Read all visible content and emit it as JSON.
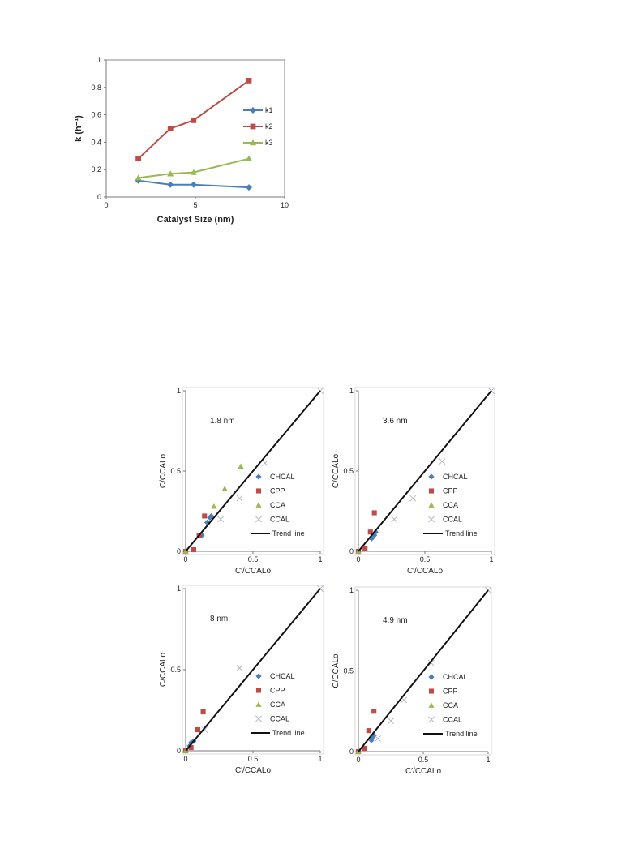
{
  "chart_data": [
    {
      "type": "line",
      "xlabel": "Catalyst  Size (nm)",
      "ylabel": "k  (h⁻¹)",
      "xlim": [
        0,
        10
      ],
      "ylim": [
        0,
        1
      ],
      "xticks": [
        "0",
        "5",
        "10"
      ],
      "yticks": [
        "0",
        "0.2",
        "0.4",
        "0.6",
        "0.8",
        "1"
      ],
      "legend": "right",
      "series": [
        {
          "name": "k1",
          "color": "#4a7ebb",
          "marker": "diamond",
          "x": [
            1.8,
            3.6,
            4.9,
            8.0
          ],
          "y": [
            0.12,
            0.09,
            0.09,
            0.07
          ]
        },
        {
          "name": "k2",
          "color": "#be4b48",
          "marker": "square",
          "x": [
            1.8,
            3.6,
            4.9,
            8.0
          ],
          "y": [
            0.28,
            0.5,
            0.56,
            0.85
          ]
        },
        {
          "name": "k3",
          "color": "#98b954",
          "marker": "triangle",
          "x": [
            1.8,
            3.6,
            4.9,
            8.0
          ],
          "y": [
            0.14,
            0.17,
            0.18,
            0.28
          ]
        }
      ]
    },
    {
      "type": "scatter",
      "annotation": "1.8 nm",
      "xlabel": "C′/CCALo",
      "ylabel": "C/CCALo",
      "xlim": [
        0,
        1
      ],
      "ylim": [
        0,
        1
      ],
      "xticks": [
        "0",
        "0.5",
        "1"
      ],
      "yticks": [
        "0",
        "0.5",
        "1"
      ],
      "series": [
        {
          "name": "CHCAL",
          "color": "#4a7ebb",
          "marker": "diamond",
          "x": [
            0.0,
            0.12,
            0.16,
            0.18,
            0.19
          ],
          "y": [
            0.0,
            0.1,
            0.18,
            0.21,
            0.22
          ]
        },
        {
          "name": "CPP",
          "color": "#be4b48",
          "marker": "square",
          "x": [
            0.0,
            0.06,
            0.1,
            0.14
          ],
          "y": [
            0.0,
            0.01,
            0.1,
            0.22
          ]
        },
        {
          "name": "CCA",
          "color": "#98b954",
          "marker": "triangle",
          "x": [
            0.0,
            0.21,
            0.29,
            0.41
          ],
          "y": [
            0.0,
            0.28,
            0.39,
            0.53
          ]
        },
        {
          "name": "CCAL",
          "color": "#b7b7c8",
          "marker": "x",
          "x": [
            0.26,
            0.4,
            0.59,
            1.0
          ],
          "y": [
            0.2,
            0.33,
            0.55,
            1.0
          ]
        },
        {
          "name": "Trend line",
          "color": "#111111",
          "marker": "line",
          "x": [
            0,
            1
          ],
          "y": [
            0,
            1
          ]
        }
      ]
    },
    {
      "type": "scatter",
      "annotation": "3.6 nm",
      "xlabel": "C′/CCALo",
      "ylabel": "C/CCALo",
      "xlim": [
        0,
        1
      ],
      "ylim": [
        0,
        1
      ],
      "xticks": [
        "0",
        "0.5",
        "1"
      ],
      "yticks": [
        "0",
        "0.5",
        "1"
      ],
      "series": [
        {
          "name": "CHCAL",
          "color": "#4a7ebb",
          "marker": "diamond",
          "x": [
            0.0,
            0.1,
            0.12,
            0.13
          ],
          "y": [
            0.0,
            0.08,
            0.1,
            0.12
          ]
        },
        {
          "name": "CPP",
          "color": "#be4b48",
          "marker": "square",
          "x": [
            0.0,
            0.05,
            0.09,
            0.12
          ],
          "y": [
            0.0,
            0.02,
            0.12,
            0.24
          ]
        },
        {
          "name": "CCA",
          "color": "#98b954",
          "marker": "triangle",
          "x": [
            0.0
          ],
          "y": [
            0.0
          ]
        },
        {
          "name": "CCAL",
          "color": "#b7b7c8",
          "marker": "x",
          "x": [
            0.27,
            0.41,
            0.63,
            1.0
          ],
          "y": [
            0.2,
            0.33,
            0.56,
            1.0
          ]
        },
        {
          "name": "Trend line",
          "color": "#111111",
          "marker": "line",
          "x": [
            0,
            1
          ],
          "y": [
            0,
            1
          ]
        }
      ]
    },
    {
      "type": "scatter",
      "annotation": "8 nm",
      "xlabel": "C′/CCALo",
      "ylabel": "C/CCALo",
      "xlim": [
        0,
        1
      ],
      "ylim": [
        0,
        1
      ],
      "xticks": [
        "0",
        "0.5",
        "1"
      ],
      "yticks": [
        "0",
        "0.5",
        "1"
      ],
      "series": [
        {
          "name": "CHCAL",
          "color": "#4a7ebb",
          "marker": "diamond",
          "x": [
            0.0,
            0.03,
            0.04,
            0.06
          ],
          "y": [
            0.0,
            0.03,
            0.05,
            0.06
          ]
        },
        {
          "name": "CPP",
          "color": "#be4b48",
          "marker": "square",
          "x": [
            0.0,
            0.04,
            0.09,
            0.13
          ],
          "y": [
            0.0,
            0.02,
            0.13,
            0.24
          ]
        },
        {
          "name": "CCA",
          "color": "#98b954",
          "marker": "triangle",
          "x": [
            0.0
          ],
          "y": [
            0.0
          ]
        },
        {
          "name": "CCAL",
          "color": "#b7b7c8",
          "marker": "x",
          "x": [
            0.14,
            0.4,
            1.0
          ],
          "y": [
            0.13,
            0.51,
            1.0
          ]
        },
        {
          "name": "Trend line",
          "color": "#111111",
          "marker": "line",
          "x": [
            0,
            1
          ],
          "y": [
            0,
            1
          ]
        }
      ]
    },
    {
      "type": "scatter",
      "annotation": "4.9 nm",
      "xlabel": "C′/CCALo",
      "ylabel": "C/CCALo",
      "xlim": [
        0,
        1
      ],
      "ylim": [
        0,
        1
      ],
      "xticks": [
        "0",
        "0.5",
        "1"
      ],
      "yticks": [
        "0",
        "0.5",
        "1"
      ],
      "series": [
        {
          "name": "CHCAL",
          "color": "#4a7ebb",
          "marker": "diamond",
          "x": [
            0.0,
            0.1,
            0.11,
            0.12
          ],
          "y": [
            0.0,
            0.07,
            0.09,
            0.1
          ]
        },
        {
          "name": "CPP",
          "color": "#be4b48",
          "marker": "square",
          "x": [
            0.0,
            0.05,
            0.08,
            0.12
          ],
          "y": [
            0.0,
            0.02,
            0.13,
            0.25
          ]
        },
        {
          "name": "CCA",
          "color": "#98b954",
          "marker": "triangle",
          "x": [
            0.0
          ],
          "y": [
            0.0
          ]
        },
        {
          "name": "CCAL",
          "color": "#b7b7c8",
          "marker": "x",
          "x": [
            0.15,
            0.25,
            0.35,
            0.56,
            1.0
          ],
          "y": [
            0.08,
            0.19,
            0.32,
            0.55,
            1.0
          ]
        },
        {
          "name": "Trend line",
          "color": "#111111",
          "marker": "line",
          "x": [
            0,
            1
          ],
          "y": [
            0,
            1
          ]
        }
      ]
    }
  ]
}
